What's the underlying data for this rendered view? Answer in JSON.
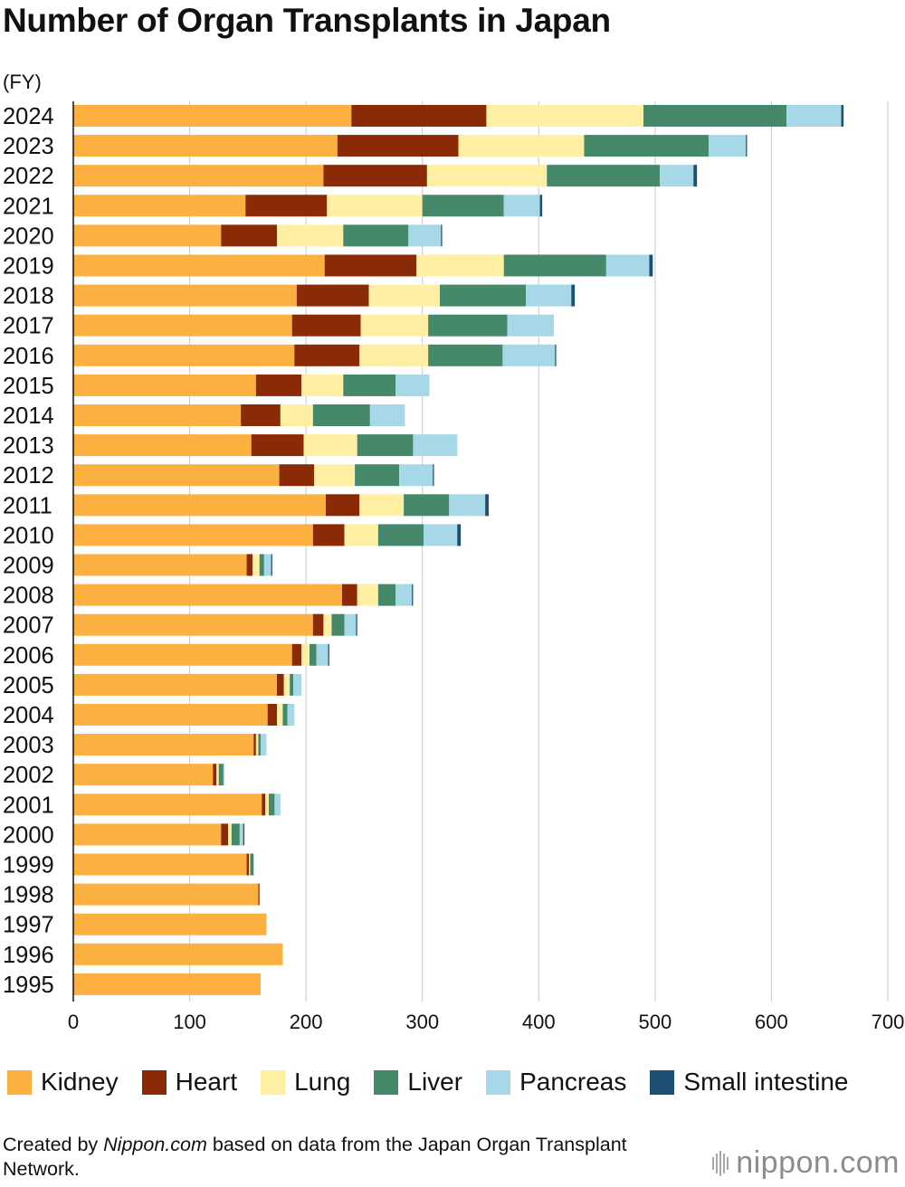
{
  "title": "Number of Organ Transplants in Japan",
  "unit_label": "(FY)",
  "legend": [
    {
      "label": "Kidney",
      "color": "#FBB040"
    },
    {
      "label": "Heart",
      "color": "#8A2A06"
    },
    {
      "label": "Lung",
      "color": "#FFEFA3"
    },
    {
      "label": "Liver",
      "color": "#46896A"
    },
    {
      "label": "Pancreas",
      "color": "#A6D8E8"
    },
    {
      "label": "Small intestine",
      "color": "#1D4F73"
    }
  ],
  "credit": {
    "prefix": "Created by ",
    "source": "Nippon.com",
    "suffix": " based on data from the Japan Organ Transplant Network."
  },
  "brand": {
    "name": "nippon",
    "tld": ".com"
  },
  "chart_data": {
    "type": "bar",
    "orientation": "horizontal",
    "stacked": true,
    "title": "Number of Organ Transplants in Japan",
    "ylabel": "(FY)",
    "xlabel": "",
    "xlim": [
      0,
      700
    ],
    "xticks": [
      0,
      100,
      200,
      300,
      400,
      500,
      600,
      700
    ],
    "grid": "vertical",
    "legend_position": "bottom",
    "categories": [
      "2024",
      "2023",
      "2022",
      "2021",
      "2020",
      "2019",
      "2018",
      "2017",
      "2016",
      "2015",
      "2014",
      "2013",
      "2012",
      "2011",
      "2010",
      "2009",
      "2008",
      "2007",
      "2006",
      "2005",
      "2004",
      "2003",
      "2002",
      "2001",
      "2000",
      "1999",
      "1998",
      "1997",
      "1996",
      "1995"
    ],
    "series": [
      {
        "name": "Kidney",
        "color": "#FBB040",
        "values": [
          239,
          227,
          215,
          148,
          127,
          216,
          192,
          188,
          190,
          157,
          144,
          153,
          177,
          217,
          206,
          149,
          231,
          206,
          188,
          175,
          167,
          155,
          120,
          162,
          127,
          149,
          159,
          166,
          180,
          161
        ]
      },
      {
        "name": "Heart",
        "color": "#8A2A06",
        "values": [
          116,
          104,
          89,
          70,
          48,
          79,
          62,
          59,
          56,
          39,
          34,
          45,
          30,
          29,
          27,
          5,
          13,
          9,
          8,
          6,
          8,
          2,
          3,
          3,
          6,
          2,
          1,
          0,
          0,
          0
        ]
      },
      {
        "name": "Lung",
        "color": "#FFEFA3",
        "values": [
          135,
          108,
          103,
          82,
          57,
          75,
          61,
          58,
          59,
          36,
          28,
          46,
          35,
          38,
          29,
          6,
          18,
          7,
          7,
          5,
          5,
          2,
          2,
          3,
          3,
          1,
          0,
          0,
          0,
          0
        ]
      },
      {
        "name": "Liver",
        "color": "#46896A",
        "values": [
          123,
          107,
          97,
          70,
          56,
          88,
          74,
          68,
          64,
          45,
          49,
          48,
          38,
          39,
          39,
          4,
          15,
          11,
          6,
          3,
          4,
          2,
          4,
          5,
          7,
          3,
          0,
          0,
          0,
          0
        ]
      },
      {
        "name": "Pancreas",
        "color": "#A6D8E8",
        "values": [
          47,
          32,
          29,
          31,
          28,
          37,
          39,
          40,
          45,
          29,
          30,
          38,
          29,
          31,
          29,
          6,
          14,
          10,
          10,
          7,
          6,
          5,
          1,
          5,
          3,
          0,
          0,
          0,
          0,
          0
        ]
      },
      {
        "name": "Small intestine",
        "color": "#1D4F73",
        "values": [
          2,
          1,
          3,
          2,
          1,
          3,
          3,
          0,
          1,
          0,
          0,
          0,
          1,
          3,
          3,
          1,
          1,
          1,
          1,
          0,
          0,
          0,
          0,
          0,
          1,
          0,
          0,
          0,
          0,
          0
        ]
      }
    ]
  }
}
